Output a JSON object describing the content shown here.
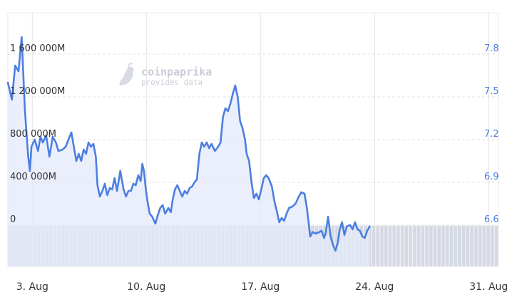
{
  "watermark": {
    "brand": "coinpaprika",
    "tagline": "provides data"
  },
  "colors": {
    "price_line": "#4c7fe0",
    "price_fill": "#e4eafb",
    "volume_bars": "#d5d9e3",
    "grid": "#e3e3e3",
    "left_axis_text": "#333333",
    "right_axis_text": "#4c7fe0"
  },
  "chart_data": {
    "type": "line",
    "x_tick_labels": [
      "3. Aug",
      "10. Aug",
      "17. Aug",
      "24. Aug",
      "31. Aug"
    ],
    "x_tick_days": [
      3,
      10,
      17,
      24,
      31
    ],
    "x_range_days": [
      1.5,
      31.6
    ],
    "left_axis": {
      "labels": [
        "0",
        "400 000M",
        "800 000M",
        "1 200 000M",
        "1 600 000M"
      ],
      "values": [
        0,
        400000,
        800000,
        1200000,
        1600000
      ],
      "unit": "M"
    },
    "right_axis": {
      "labels": [
        "6.6",
        "6.9",
        "7.2",
        "7.5",
        "7.8"
      ],
      "values": [
        6.6,
        6.9,
        7.2,
        7.5,
        7.8
      ]
    },
    "series": [
      {
        "axis": "right",
        "points": [
          [
            1.5,
            7.6
          ],
          [
            1.75,
            7.48
          ],
          [
            1.95,
            7.72
          ],
          [
            2.15,
            7.68
          ],
          [
            2.35,
            7.92
          ],
          [
            2.55,
            7.4
          ],
          [
            2.75,
            7.08
          ],
          [
            2.85,
            6.98
          ],
          [
            2.95,
            7.15
          ],
          [
            3.15,
            7.2
          ],
          [
            3.35,
            7.12
          ],
          [
            3.5,
            7.22
          ],
          [
            3.65,
            7.18
          ],
          [
            3.85,
            7.23
          ],
          [
            4.05,
            7.08
          ],
          [
            4.25,
            7.22
          ],
          [
            4.45,
            7.18
          ],
          [
            4.6,
            7.12
          ],
          [
            4.85,
            7.13
          ],
          [
            5.05,
            7.15
          ],
          [
            5.25,
            7.21
          ],
          [
            5.4,
            7.25
          ],
          [
            5.55,
            7.15
          ],
          [
            5.7,
            7.05
          ],
          [
            5.85,
            7.1
          ],
          [
            6.0,
            7.05
          ],
          [
            6.15,
            7.13
          ],
          [
            6.3,
            7.1
          ],
          [
            6.45,
            7.18
          ],
          [
            6.6,
            7.15
          ],
          [
            6.75,
            7.17
          ],
          [
            6.9,
            7.08
          ],
          [
            7.0,
            6.88
          ],
          [
            7.15,
            6.8
          ],
          [
            7.3,
            6.84
          ],
          [
            7.45,
            6.89
          ],
          [
            7.6,
            6.81
          ],
          [
            7.75,
            6.86
          ],
          [
            7.9,
            6.85
          ],
          [
            8.05,
            6.93
          ],
          [
            8.2,
            6.84
          ],
          [
            8.4,
            6.98
          ],
          [
            8.6,
            6.85
          ],
          [
            8.75,
            6.8
          ],
          [
            8.9,
            6.84
          ],
          [
            9.05,
            6.84
          ],
          [
            9.2,
            6.89
          ],
          [
            9.35,
            6.88
          ],
          [
            9.5,
            6.95
          ],
          [
            9.65,
            6.91
          ],
          [
            9.75,
            7.03
          ],
          [
            9.85,
            6.98
          ],
          [
            9.95,
            6.87
          ],
          [
            10.05,
            6.78
          ],
          [
            10.2,
            6.68
          ],
          [
            10.35,
            6.66
          ],
          [
            10.55,
            6.61
          ],
          [
            10.7,
            6.67
          ],
          [
            10.85,
            6.72
          ],
          [
            11.0,
            6.74
          ],
          [
            11.15,
            6.68
          ],
          [
            11.35,
            6.72
          ],
          [
            11.5,
            6.69
          ],
          [
            11.6,
            6.77
          ],
          [
            11.75,
            6.85
          ],
          [
            11.9,
            6.88
          ],
          [
            12.05,
            6.84
          ],
          [
            12.2,
            6.8
          ],
          [
            12.35,
            6.84
          ],
          [
            12.5,
            6.82
          ],
          [
            12.65,
            6.86
          ],
          [
            12.8,
            6.87
          ],
          [
            12.95,
            6.9
          ],
          [
            13.1,
            6.92
          ],
          [
            13.25,
            7.1
          ],
          [
            13.4,
            7.18
          ],
          [
            13.55,
            7.15
          ],
          [
            13.7,
            7.18
          ],
          [
            13.85,
            7.14
          ],
          [
            14.0,
            7.17
          ],
          [
            14.2,
            7.12
          ],
          [
            14.4,
            7.15
          ],
          [
            14.55,
            7.18
          ],
          [
            14.7,
            7.36
          ],
          [
            14.85,
            7.42
          ],
          [
            15.0,
            7.4
          ],
          [
            15.15,
            7.45
          ],
          [
            15.3,
            7.52
          ],
          [
            15.45,
            7.58
          ],
          [
            15.6,
            7.5
          ],
          [
            15.75,
            7.33
          ],
          [
            15.9,
            7.28
          ],
          [
            16.05,
            7.2
          ],
          [
            16.15,
            7.1
          ],
          [
            16.3,
            7.05
          ],
          [
            16.45,
            6.9
          ],
          [
            16.6,
            6.79
          ],
          [
            16.75,
            6.82
          ],
          [
            16.9,
            6.78
          ],
          [
            17.05,
            6.85
          ],
          [
            17.2,
            6.93
          ],
          [
            17.35,
            6.95
          ],
          [
            17.5,
            6.93
          ],
          [
            17.7,
            6.87
          ],
          [
            17.85,
            6.77
          ],
          [
            18.0,
            6.7
          ],
          [
            18.15,
            6.62
          ],
          [
            18.3,
            6.65
          ],
          [
            18.45,
            6.63
          ],
          [
            18.6,
            6.68
          ],
          [
            18.75,
            6.72
          ],
          [
            18.95,
            6.73
          ],
          [
            19.15,
            6.75
          ],
          [
            19.35,
            6.8
          ],
          [
            19.5,
            6.83
          ],
          [
            19.7,
            6.82
          ],
          [
            19.85,
            6.72
          ],
          [
            19.95,
            6.62
          ],
          [
            20.05,
            6.52
          ],
          [
            20.2,
            6.55
          ],
          [
            20.4,
            6.54
          ],
          [
            20.6,
            6.55
          ],
          [
            20.75,
            6.56
          ],
          [
            20.9,
            6.51
          ],
          [
            21.0,
            6.54
          ],
          [
            21.15,
            6.66
          ],
          [
            21.3,
            6.52
          ],
          [
            21.45,
            6.46
          ],
          [
            21.6,
            6.42
          ],
          [
            21.75,
            6.48
          ],
          [
            21.85,
            6.56
          ],
          [
            22.0,
            6.62
          ],
          [
            22.15,
            6.53
          ],
          [
            22.3,
            6.59
          ],
          [
            22.5,
            6.6
          ],
          [
            22.65,
            6.57
          ],
          [
            22.8,
            6.62
          ],
          [
            22.95,
            6.57
          ],
          [
            23.1,
            6.56
          ],
          [
            23.25,
            6.52
          ],
          [
            23.4,
            6.51
          ],
          [
            23.55,
            6.56
          ],
          [
            23.7,
            6.59
          ]
        ]
      }
    ],
    "volume_bar_count": 120
  }
}
